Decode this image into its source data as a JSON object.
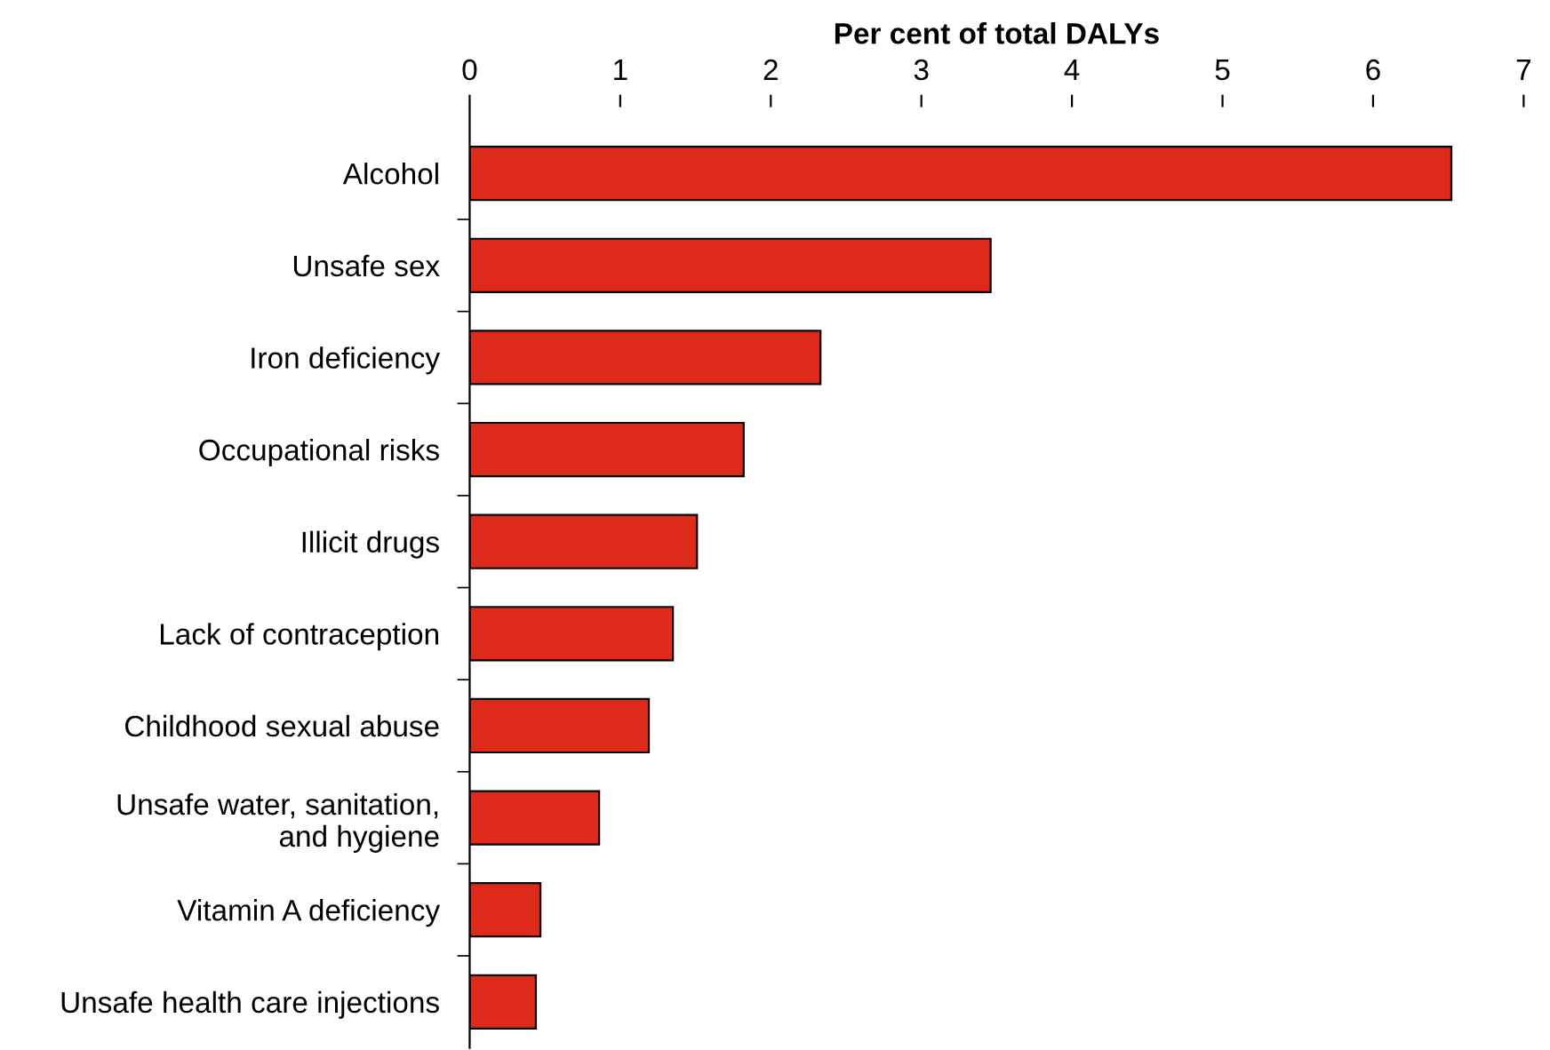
{
  "chart_data": {
    "type": "bar",
    "orientation": "horizontal",
    "xlabel": "Per cent of total DALYs",
    "categories": [
      "Alcohol",
      "Unsafe sex",
      "Iron deficiency",
      "Occupational risks",
      "Illicit drugs",
      "Lack of contraception",
      "Childhood sexual abuse",
      "Unsafe water, sanitation,\nand hygiene",
      "Vitamin A deficiency",
      "Unsafe health care injections"
    ],
    "values": [
      6.52,
      3.46,
      2.33,
      1.82,
      1.51,
      1.35,
      1.19,
      0.86,
      0.47,
      0.44
    ],
    "color": "#dd2a1b",
    "xlim": [
      0,
      7
    ],
    "xticks": [
      0,
      1,
      2,
      3,
      4,
      5,
      6,
      7
    ],
    "grid": false,
    "legend": false
  }
}
